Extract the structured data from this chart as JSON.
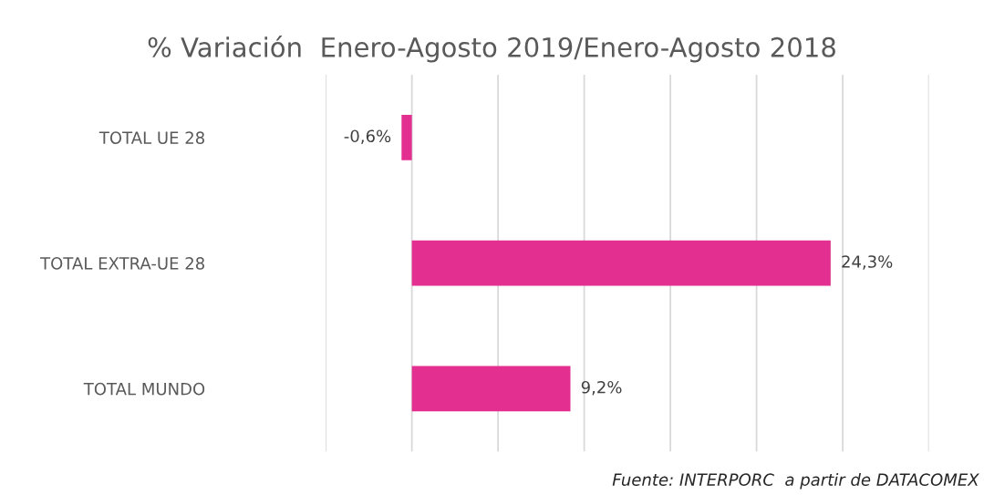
{
  "chart_data": {
    "type": "bar",
    "orientation": "horizontal",
    "title": "% Variación  Enero-Agosto 2019/Enero-Agosto 2018",
    "categories": [
      "TOTAL UE 28",
      "TOTAL EXTRA-UE 28",
      "TOTAL MUNDO"
    ],
    "values": [
      -0.6,
      24.3,
      9.2
    ],
    "color": "#e32f8f",
    "value_labels": [
      "-0,6%",
      "24,3%",
      "9,2%"
    ],
    "xlim": [
      -5,
      30
    ],
    "xticks": [
      {
        "value": -5,
        "label": null
      },
      {
        "value": 0,
        "label": null
      },
      {
        "value": 5,
        "label": null
      },
      {
        "value": 10,
        "label": null
      },
      {
        "value": 15,
        "label": null
      },
      {
        "value": 20,
        "label": null
      },
      {
        "value": 25,
        "label": null
      },
      {
        "value": 30,
        "label": null
      }
    ],
    "grid": "x",
    "tick_labels": "y",
    "annotations": [
      "Fuente: INTERPORC  a partir de DATACOMEX"
    ]
  }
}
